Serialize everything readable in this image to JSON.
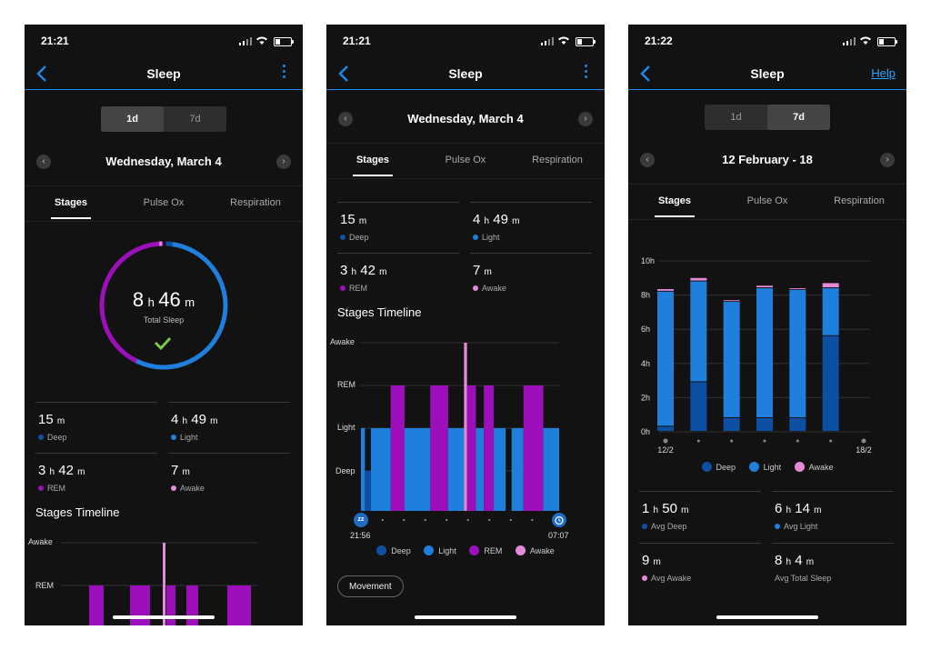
{
  "colors": {
    "deep": "#0d4fa3",
    "light": "#1e7fdc",
    "rem": "#9c0fba",
    "awake": "#e58ad8",
    "accent": "#1e88e5",
    "check": "#7ac943"
  },
  "screens": [
    {
      "status_time": "21:21",
      "nav": {
        "title": "Sleep"
      },
      "segment": [
        "1d",
        "7d"
      ],
      "date": "Wednesday, March 4",
      "tabs": [
        "Stages",
        "Pulse Ox",
        "Respiration"
      ],
      "ring": {
        "hours": "8",
        "h_unit": "h",
        "minutes": "46",
        "m_unit": "m",
        "label": "Total Sleep"
      },
      "stats": [
        {
          "num1": "15",
          "u1": "m",
          "num2": "",
          "u2": "",
          "label": "Deep"
        },
        {
          "num1": "4",
          "u1": "h",
          "num2": "49",
          "u2": "m",
          "label": "Light"
        },
        {
          "num1": "3",
          "u1": "h",
          "num2": "42",
          "u2": "m",
          "label": "REM"
        },
        {
          "num1": "7",
          "u1": "m",
          "num2": "",
          "u2": "",
          "label": "Awake"
        }
      ],
      "timeline_title": "Stages Timeline",
      "timeline_labels": [
        "Awake",
        "REM"
      ]
    },
    {
      "status_time": "21:21",
      "nav": {
        "title": "Sleep"
      },
      "date": "Wednesday, March 4",
      "tabs": [
        "Stages",
        "Pulse Ox",
        "Respiration"
      ],
      "stats": [
        {
          "num1": "15",
          "u1": "m",
          "num2": "",
          "u2": "",
          "label": "Deep"
        },
        {
          "num1": "4",
          "u1": "h",
          "num2": "49",
          "u2": "m",
          "label": "Light"
        },
        {
          "num1": "3",
          "u1": "h",
          "num2": "42",
          "u2": "m",
          "label": "REM"
        },
        {
          "num1": "7",
          "u1": "m",
          "num2": "",
          "u2": "",
          "label": "Awake"
        }
      ],
      "timeline_title": "Stages Timeline",
      "timeline_labels": [
        "Awake",
        "REM",
        "Light",
        "Deep"
      ],
      "start_time": "21:56",
      "end_time": "07:07",
      "start_icon_text": "zz",
      "legend": [
        "Deep",
        "Light",
        "REM",
        "Awake"
      ],
      "movement_label": "Movement"
    },
    {
      "status_time": "21:22",
      "nav": {
        "title": "Sleep",
        "help": "Help"
      },
      "segment": [
        "1d",
        "7d"
      ],
      "date": "12 February - 18",
      "tabs": [
        "Stages",
        "Pulse Ox",
        "Respiration"
      ],
      "legend": [
        "Deep",
        "Light",
        "Awake"
      ],
      "stats": [
        {
          "num1": "1",
          "u1": "h",
          "num2": "50",
          "u2": "m",
          "label": "Avg Deep"
        },
        {
          "num1": "6",
          "u1": "h",
          "num2": "14",
          "u2": "m",
          "label": "Avg Light"
        },
        {
          "num1": "9",
          "u1": "m",
          "num2": "",
          "u2": "",
          "label": "Avg Awake"
        },
        {
          "num1": "8",
          "u1": "h",
          "num2": "4",
          "u2": "m",
          "label": "Avg Total Sleep"
        }
      ]
    }
  ],
  "chart_data": [
    {
      "type": "bar",
      "title": "",
      "stacked": true,
      "categories": [
        "12/2",
        "",
        "",
        "",
        "",
        "",
        "18/2"
      ],
      "y_ticks": [
        "0h",
        "2h",
        "4h",
        "6h",
        "8h",
        "10h"
      ],
      "ylim": [
        0,
        10
      ],
      "series": [
        {
          "name": "Deep",
          "values": [
            0.3,
            2.9,
            0.8,
            0.8,
            0.8,
            5.6,
            0
          ]
        },
        {
          "name": "Light",
          "values": [
            7.9,
            5.9,
            6.8,
            7.6,
            7.5,
            2.8,
            0
          ]
        },
        {
          "name": "Awake",
          "values": [
            0.15,
            0.2,
            0.1,
            0.15,
            0.1,
            0.3,
            0
          ]
        }
      ]
    },
    {
      "type": "bar",
      "title": "",
      "x": [
        "21:56",
        "07:07"
      ],
      "y_levels": [
        "Deep",
        "Light",
        "REM",
        "Awake"
      ],
      "segments": [
        {
          "stage": "Light",
          "start": 0.0,
          "end": 0.02
        },
        {
          "stage": "Deep",
          "start": 0.02,
          "end": 0.05
        },
        {
          "stage": "Light",
          "start": 0.05,
          "end": 0.15
        },
        {
          "stage": "REM",
          "start": 0.15,
          "end": 0.22
        },
        {
          "stage": "Light",
          "start": 0.22,
          "end": 0.35
        },
        {
          "stage": "REM",
          "start": 0.35,
          "end": 0.44
        },
        {
          "stage": "Light",
          "start": 0.44,
          "end": 0.52
        },
        {
          "stage": "Awake",
          "start": 0.52,
          "end": 0.535
        },
        {
          "stage": "REM",
          "start": 0.535,
          "end": 0.58
        },
        {
          "stage": "Light",
          "start": 0.58,
          "end": 0.62
        },
        {
          "stage": "REM",
          "start": 0.62,
          "end": 0.67
        },
        {
          "stage": "Light",
          "start": 0.67,
          "end": 0.73
        },
        {
          "stage": "Light",
          "start": 0.76,
          "end": 0.82
        },
        {
          "stage": "REM",
          "start": 0.82,
          "end": 0.92
        },
        {
          "stage": "Light",
          "start": 0.92,
          "end": 1.0
        }
      ]
    }
  ]
}
